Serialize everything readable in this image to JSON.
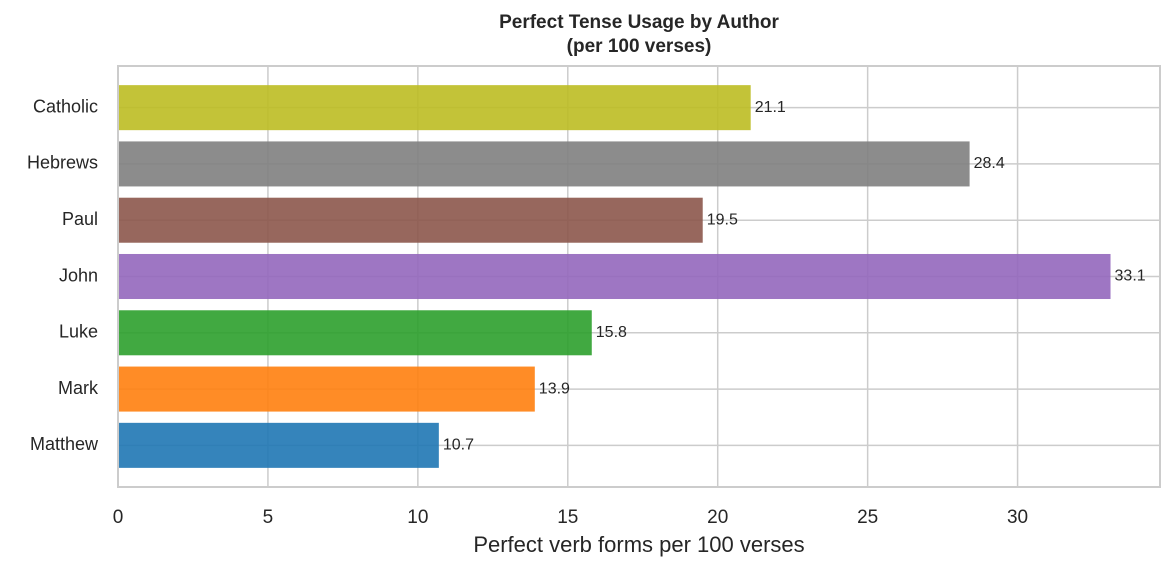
{
  "chart_data": {
    "type": "barh",
    "title": "Perfect Tense Usage by Author",
    "subtitle": "(per 100 verses)",
    "x_label": "Perfect verb forms per 100 verses",
    "categories": [
      "Matthew",
      "Mark",
      "Luke",
      "John",
      "Paul",
      "Hebrews",
      "Catholic"
    ],
    "values": [
      10.7,
      13.9,
      15.8,
      33.1,
      19.5,
      28.4,
      21.1
    ],
    "colors": [
      "#1f77b4",
      "#ff7f0e",
      "#2ca02c",
      "#9467bd",
      "#8c564b",
      "#7f7f7f",
      "#bcbd22"
    ],
    "xlim": [
      0,
      34.75
    ],
    "xticks": [
      0,
      5,
      10,
      15,
      20,
      25,
      30
    ],
    "grid": true
  }
}
